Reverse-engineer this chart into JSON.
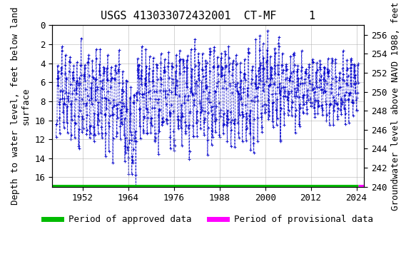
{
  "title": "USGS 413033072432001  CT-MF     1",
  "ylabel_left": "Depth to water level, feet below land\nsurface",
  "ylabel_right": "Groundwater level above NAVD 1988, feet",
  "xlabel": "",
  "ylim_left": [
    17,
    0
  ],
  "ylim_right": [
    240,
    257
  ],
  "xlim": [
    1944,
    2026
  ],
  "xticks": [
    1952,
    1964,
    1976,
    1988,
    2000,
    2012,
    2024
  ],
  "yticks_left": [
    0,
    2,
    4,
    6,
    8,
    10,
    12,
    14,
    16
  ],
  "yticks_right": [
    240,
    242,
    244,
    246,
    248,
    250,
    252,
    254,
    256
  ],
  "data_color": "#0000CC",
  "approved_color": "#00BB00",
  "provisional_color": "#FF00FF",
  "background_color": "#ffffff",
  "plot_bg_color": "#ffffff",
  "grid_color": "#aaaaaa",
  "title_fontsize": 11,
  "axis_label_fontsize": 9,
  "tick_fontsize": 9,
  "legend_fontsize": 9,
  "bar_y": 17.0,
  "approved_xstart": 1944,
  "provisional_xstart": 2024.5,
  "provisional_xend": 2026
}
